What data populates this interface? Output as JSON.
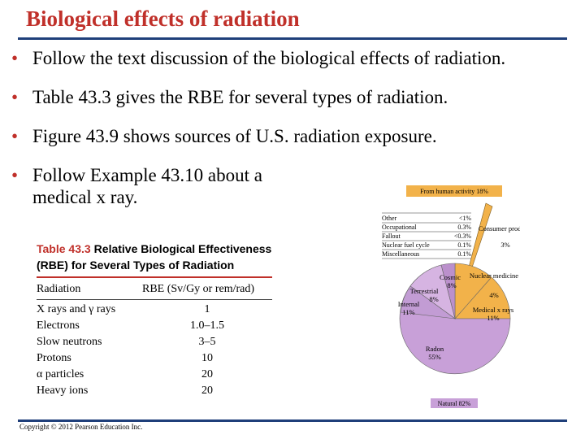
{
  "slide": {
    "title": "Biological effects of radiation"
  },
  "bullets": [
    "Follow the text discussion of the biological effects of radiation.",
    "Table 43.3 gives the RBE for several types of radiation.",
    "Figure 43.9 shows sources of U.S. radiation exposure.",
    "Follow Example 43.10 about a medical x ray."
  ],
  "bullet_marker": "•",
  "table": {
    "number": "Table 43.3",
    "title": "Relative Biological Effectiveness (RBE) for Several Types of Radiation",
    "col_radiation": "Radiation",
    "col_rbe": "RBE (Sv/Gy or rem/rad)",
    "rows": [
      {
        "radiation": "X rays and γ rays",
        "rbe": "1"
      },
      {
        "radiation": "Electrons",
        "rbe": "1.0–1.5"
      },
      {
        "radiation": "Slow neutrons",
        "rbe": "3–5"
      },
      {
        "radiation": "Protons",
        "rbe": "10"
      },
      {
        "radiation": "α particles",
        "rbe": "20"
      },
      {
        "radiation": "Heavy ions",
        "rbe": "20"
      }
    ]
  },
  "copyright": "Copyright © 2012 Pearson Education Inc.",
  "colors": {
    "title": "#c0302a",
    "rule": "#1f3f7a",
    "natural": "#c8a0d8",
    "human": "#f2b24a"
  },
  "figure": {
    "human_label": "From human activity 18%",
    "natural_label": "Natural 82%",
    "legend": [
      {
        "label": "Other",
        "value": "<1%"
      },
      {
        "label": "Occupational",
        "value": "0.3%"
      },
      {
        "label": "Fallout",
        "value": "<0.3%"
      },
      {
        "label": "Nuclear fuel cycle",
        "value": "0.1%"
      },
      {
        "label": "Miscellaneous",
        "value": "0.1%"
      }
    ],
    "slices": [
      {
        "label": "Radon",
        "value": "55%"
      },
      {
        "label": "Internal",
        "value": "11%"
      },
      {
        "label": "Terrestrial",
        "value": "8%"
      },
      {
        "label": "Cosmic",
        "value": "8%"
      },
      {
        "label": "Nuclear medicine",
        "value": "4%"
      },
      {
        "label": "Medical x rays",
        "value": "11%"
      },
      {
        "label": "Consumer products",
        "value": "3%"
      }
    ]
  }
}
